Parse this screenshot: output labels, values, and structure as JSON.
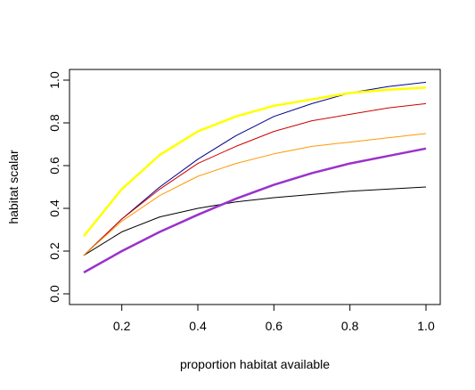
{
  "chart_data": {
    "type": "line",
    "xlabel": "proportion habitat available",
    "ylabel": "habitat scalar",
    "xlim": [
      0.1,
      1.0
    ],
    "ylim": [
      0.0,
      1.0
    ],
    "x_ticks": [
      0.2,
      0.4,
      0.6,
      0.8,
      1.0
    ],
    "y_ticks": [
      0.0,
      0.2,
      0.4,
      0.6,
      0.8,
      1.0
    ],
    "x_tick_labels": [
      "0.2",
      "0.4",
      "0.6",
      "0.8",
      "1.0"
    ],
    "y_tick_labels": [
      "0.0",
      "0.2",
      "0.4",
      "0.6",
      "0.8",
      "1.0"
    ],
    "grid": false,
    "x": [
      0.1,
      0.2,
      0.3,
      0.4,
      0.5,
      0.6,
      0.7,
      0.8,
      0.9,
      1.0
    ],
    "series": [
      {
        "color": "#000000",
        "width": 1,
        "values": [
          0.18,
          0.29,
          0.36,
          0.4,
          0.43,
          0.45,
          0.465,
          0.48,
          0.49,
          0.5
        ]
      },
      {
        "color": "#00008b",
        "width": 1,
        "values": [
          0.18,
          0.35,
          0.5,
          0.63,
          0.74,
          0.83,
          0.89,
          0.94,
          0.97,
          0.99
        ]
      },
      {
        "color": "#cc0000",
        "width": 1,
        "values": [
          0.18,
          0.35,
          0.49,
          0.61,
          0.69,
          0.76,
          0.81,
          0.84,
          0.87,
          0.89
        ]
      },
      {
        "color": "#ff9900",
        "width": 1,
        "values": [
          0.18,
          0.34,
          0.46,
          0.55,
          0.61,
          0.655,
          0.69,
          0.71,
          0.73,
          0.75
        ]
      },
      {
        "color": "#ffff00",
        "width": 2.5,
        "values": [
          0.27,
          0.49,
          0.65,
          0.76,
          0.83,
          0.88,
          0.91,
          0.94,
          0.955,
          0.965
        ]
      },
      {
        "color": "#9932cc",
        "width": 2.5,
        "values": [
          0.1,
          0.2,
          0.29,
          0.37,
          0.445,
          0.51,
          0.565,
          0.61,
          0.645,
          0.68
        ]
      }
    ]
  }
}
